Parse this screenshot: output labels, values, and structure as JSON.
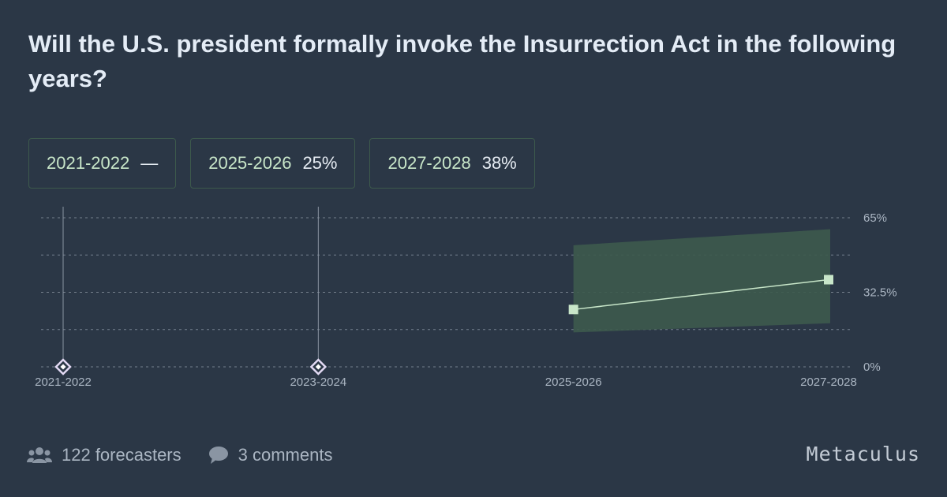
{
  "title": "Will the U.S. president formally invoke the Insurrection Act in the following years?",
  "legend": [
    {
      "name": "2021-2022",
      "value": "—"
    },
    {
      "name": "2025-2026",
      "value": "25%"
    },
    {
      "name": "2027-2028",
      "value": "38%"
    }
  ],
  "chart_data": {
    "type": "line",
    "categories": [
      "2021-2022",
      "2023-2024",
      "2025-2026",
      "2027-2028"
    ],
    "ylim": [
      0,
      65
    ],
    "y_ticks": [
      "65%",
      "32.5%",
      "0%"
    ],
    "grid": true,
    "resolved_no": [
      "2021-2022",
      "2023-2024"
    ],
    "values": [
      null,
      null,
      25,
      38
    ],
    "band_low": [
      null,
      null,
      15,
      19
    ],
    "band_high": [
      null,
      null,
      53,
      60
    ],
    "colors": {
      "line": "#c8e6c9",
      "band": "#3d5a4c",
      "grid": "#75808d",
      "resolved_line": "#8a94a2",
      "resolved_marker": "#e2d9f3"
    }
  },
  "footer": {
    "forecasters": "122 forecasters",
    "comments": "3 comments",
    "forecasters_icon": "users-icon",
    "comments_icon": "comment-icon"
  },
  "brand": "Metaculus"
}
